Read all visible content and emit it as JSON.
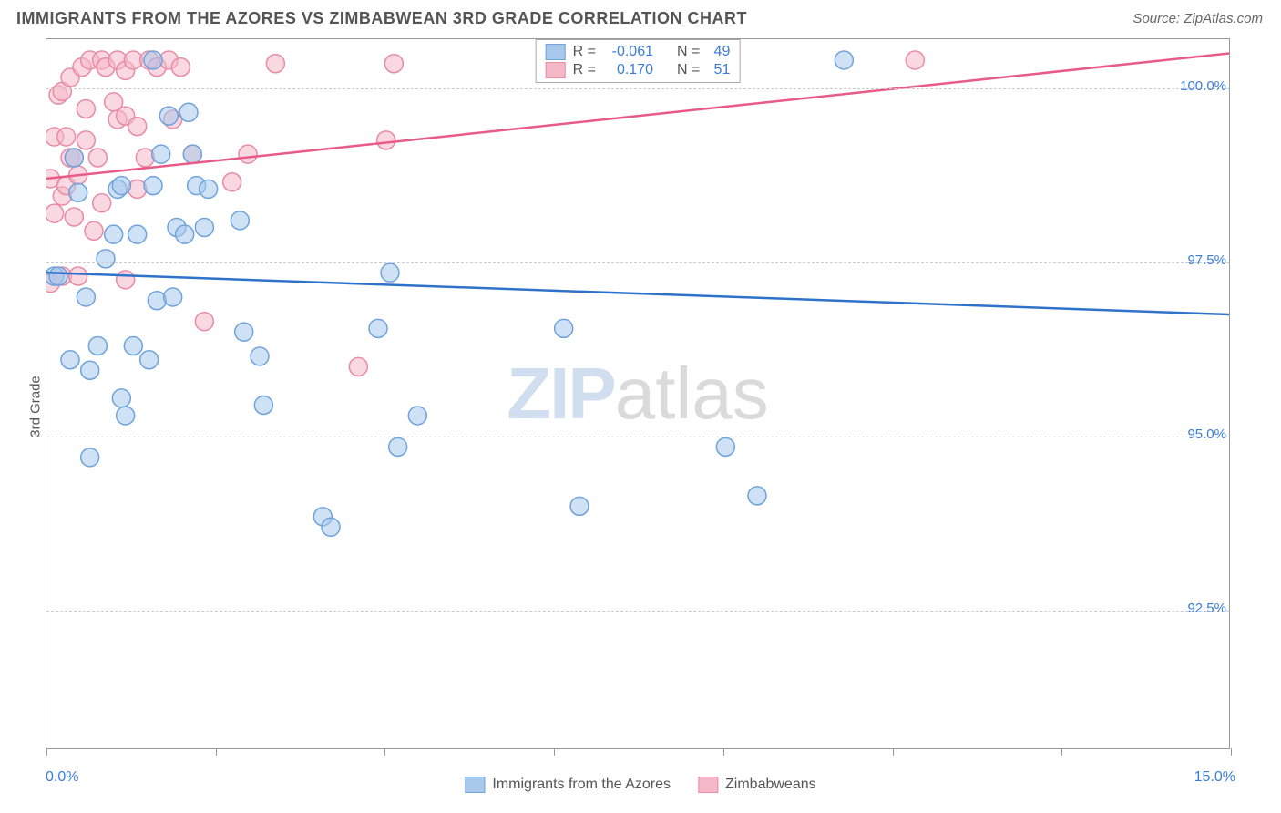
{
  "header": {
    "title": "IMMIGRANTS FROM THE AZORES VS ZIMBABWEAN 3RD GRADE CORRELATION CHART",
    "source": "Source: ZipAtlas.com"
  },
  "watermark": {
    "part1": "ZIP",
    "part2": "atlas"
  },
  "chart": {
    "type": "scatter",
    "ylabel": "3rd Grade",
    "xlim": [
      0,
      15
    ],
    "ylim": [
      90.5,
      100.7
    ],
    "x_min_label": "0.0%",
    "x_max_label": "15.0%",
    "y_ticks": [
      92.5,
      95.0,
      97.5,
      100.0
    ],
    "y_tick_labels": [
      "92.5%",
      "95.0%",
      "97.5%",
      "100.0%"
    ],
    "x_tick_positions": [
      0,
      2.143,
      4.286,
      6.429,
      8.571,
      10.714,
      12.857,
      15.0
    ],
    "grid_color": "#cccccc",
    "background_color": "#ffffff",
    "series": [
      {
        "name": "Immigrants from the Azores",
        "color_fill": "#a8c8ec",
        "color_stroke": "#6fa3db",
        "line_color": "#2f72c9",
        "marker_radius": 10,
        "fill_opacity": 0.55,
        "R": "-0.061",
        "N": "49",
        "trend": {
          "x1": 0,
          "y1": 97.35,
          "x2": 15,
          "y2": 96.75
        },
        "points": [
          [
            0.1,
            97.3
          ],
          [
            0.15,
            97.3
          ],
          [
            0.3,
            96.1
          ],
          [
            0.35,
            99.0
          ],
          [
            0.4,
            98.5
          ],
          [
            0.5,
            97.0
          ],
          [
            0.55,
            95.95
          ],
          [
            0.55,
            94.7
          ],
          [
            0.65,
            96.3
          ],
          [
            0.75,
            97.55
          ],
          [
            0.85,
            97.9
          ],
          [
            0.9,
            98.55
          ],
          [
            0.95,
            98.6
          ],
          [
            0.95,
            95.55
          ],
          [
            1.0,
            95.3
          ],
          [
            1.1,
            96.3
          ],
          [
            1.15,
            97.9
          ],
          [
            1.3,
            96.1
          ],
          [
            1.35,
            100.4
          ],
          [
            1.35,
            98.6
          ],
          [
            1.4,
            96.95
          ],
          [
            1.45,
            99.05
          ],
          [
            1.55,
            99.6
          ],
          [
            1.6,
            97.0
          ],
          [
            1.65,
            98.0
          ],
          [
            1.75,
            97.9
          ],
          [
            1.8,
            99.65
          ],
          [
            1.85,
            99.05
          ],
          [
            1.9,
            98.6
          ],
          [
            2.0,
            98.0
          ],
          [
            2.05,
            98.55
          ],
          [
            2.45,
            98.1
          ],
          [
            2.5,
            96.5
          ],
          [
            2.7,
            96.15
          ],
          [
            2.75,
            95.45
          ],
          [
            3.5,
            93.85
          ],
          [
            3.6,
            93.7
          ],
          [
            4.2,
            96.55
          ],
          [
            4.35,
            97.35
          ],
          [
            4.45,
            94.85
          ],
          [
            4.7,
            95.3
          ],
          [
            6.55,
            96.55
          ],
          [
            6.75,
            94.0
          ],
          [
            8.1,
            100.4
          ],
          [
            8.6,
            94.85
          ],
          [
            9.0,
            94.15
          ],
          [
            10.1,
            100.4
          ]
        ]
      },
      {
        "name": "Zimbabweans",
        "color_fill": "#f5b8c8",
        "color_stroke": "#e88ba5",
        "line_color": "#e85a88",
        "marker_radius": 10,
        "fill_opacity": 0.55,
        "R": "0.170",
        "N": "51",
        "trend": {
          "x1": 0,
          "y1": 98.7,
          "x2": 15,
          "y2": 100.5
        },
        "points": [
          [
            0.05,
            97.2
          ],
          [
            0.05,
            98.7
          ],
          [
            0.1,
            98.2
          ],
          [
            0.1,
            99.3
          ],
          [
            0.15,
            99.9
          ],
          [
            0.2,
            98.45
          ],
          [
            0.2,
            99.95
          ],
          [
            0.2,
            97.3
          ],
          [
            0.25,
            98.6
          ],
          [
            0.25,
            99.3
          ],
          [
            0.3,
            99.0
          ],
          [
            0.3,
            100.15
          ],
          [
            0.35,
            98.15
          ],
          [
            0.35,
            99.0
          ],
          [
            0.4,
            97.3
          ],
          [
            0.4,
            98.75
          ],
          [
            0.45,
            100.3
          ],
          [
            0.5,
            99.7
          ],
          [
            0.5,
            99.25
          ],
          [
            0.55,
            100.4
          ],
          [
            0.6,
            97.95
          ],
          [
            0.65,
            99.0
          ],
          [
            0.7,
            100.4
          ],
          [
            0.7,
            98.35
          ],
          [
            0.75,
            100.3
          ],
          [
            0.85,
            99.8
          ],
          [
            0.9,
            100.4
          ],
          [
            0.9,
            99.55
          ],
          [
            1.0,
            100.25
          ],
          [
            1.0,
            99.6
          ],
          [
            1.0,
            97.25
          ],
          [
            1.1,
            100.4
          ],
          [
            1.15,
            98.55
          ],
          [
            1.15,
            99.45
          ],
          [
            1.25,
            99.0
          ],
          [
            1.3,
            100.4
          ],
          [
            1.4,
            100.3
          ],
          [
            1.55,
            100.4
          ],
          [
            1.6,
            99.55
          ],
          [
            1.7,
            100.3
          ],
          [
            1.85,
            99.05
          ],
          [
            2.0,
            96.65
          ],
          [
            2.35,
            98.65
          ],
          [
            2.55,
            99.05
          ],
          [
            2.9,
            100.35
          ],
          [
            3.95,
            96.0
          ],
          [
            4.3,
            99.25
          ],
          [
            4.4,
            100.35
          ],
          [
            11.0,
            100.4
          ]
        ]
      }
    ],
    "legend_top": [
      {
        "swatch_fill": "#a8c8ec",
        "swatch_stroke": "#6fa3db",
        "R_label": "R = ",
        "R_val": "-0.061",
        "N_label": "N = ",
        "N_val": "49"
      },
      {
        "swatch_fill": "#f5b8c8",
        "swatch_stroke": "#e88ba5",
        "R_label": "R = ",
        "R_val": "0.170",
        "N_label": "N = ",
        "N_val": "51"
      }
    ],
    "legend_bottom": [
      {
        "swatch_fill": "#a8c8ec",
        "swatch_stroke": "#6fa3db",
        "label": "Immigrants from the Azores"
      },
      {
        "swatch_fill": "#f5b8c8",
        "swatch_stroke": "#e88ba5",
        "label": "Zimbabweans"
      }
    ]
  }
}
